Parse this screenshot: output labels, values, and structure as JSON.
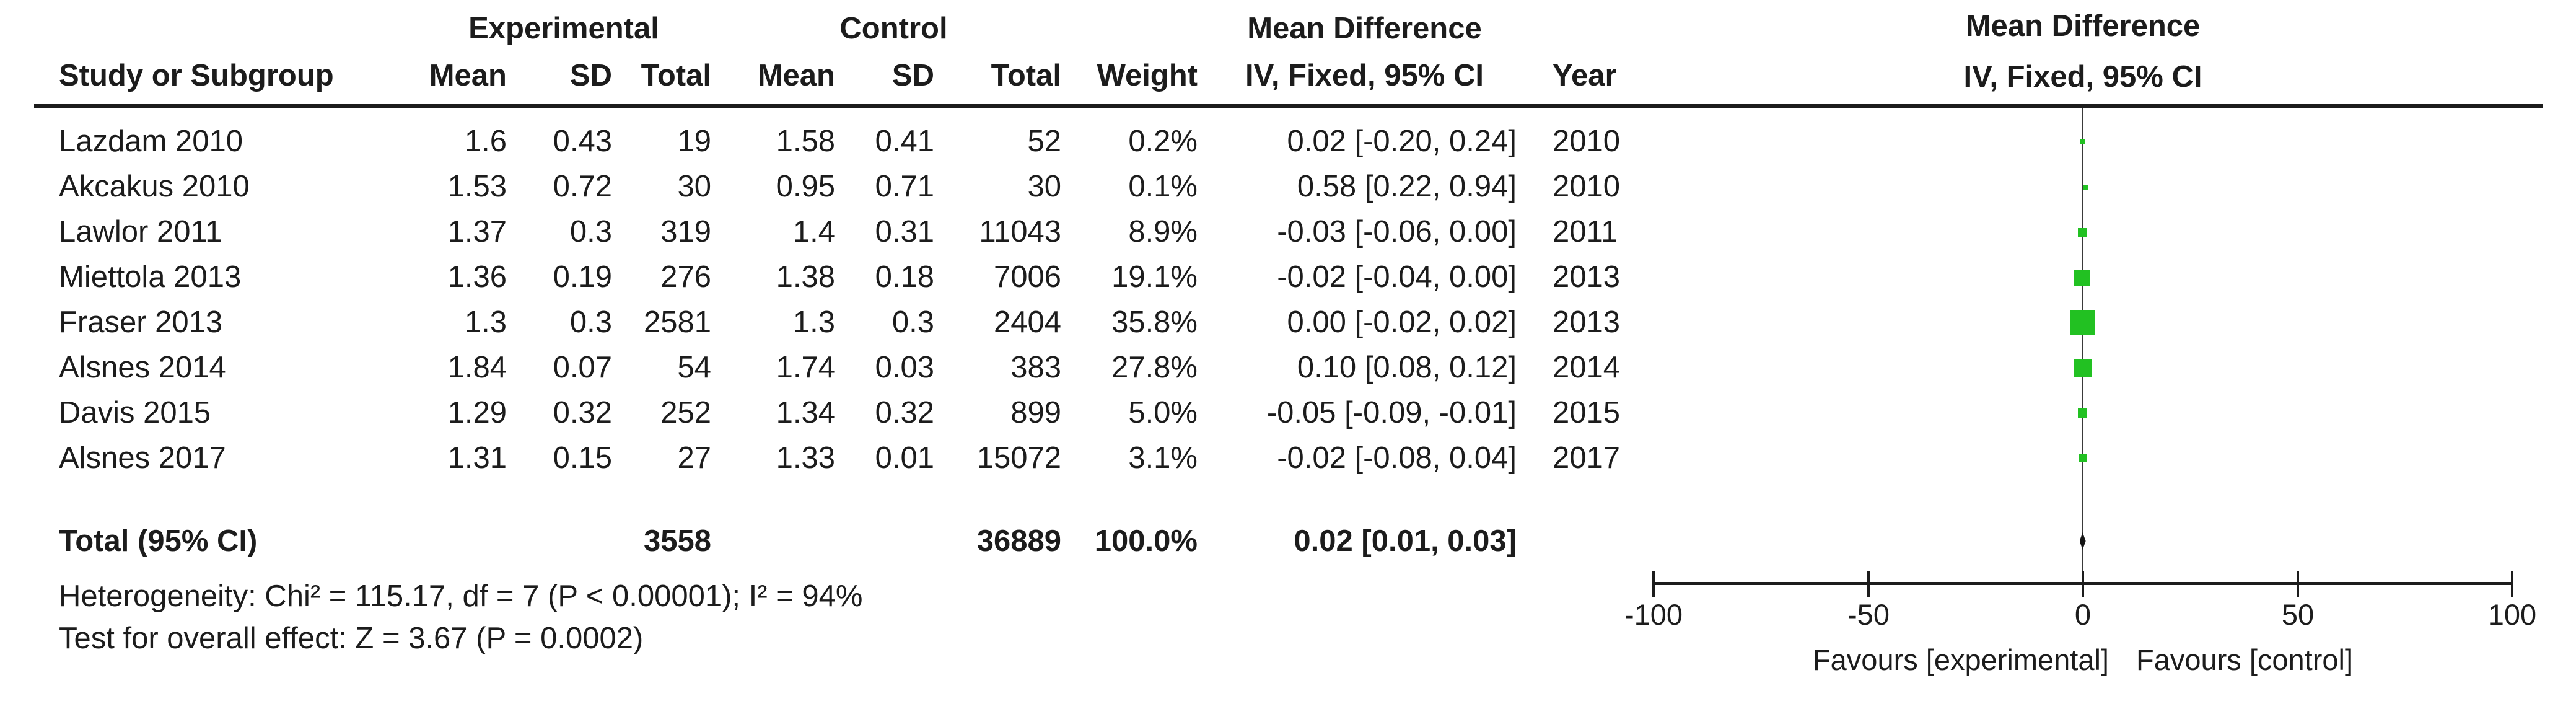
{
  "table": {
    "group_headers": {
      "experimental": "Experimental",
      "control": "Control",
      "mean_difference": "Mean Difference"
    },
    "columns": {
      "study": "Study or Subgroup",
      "exp_mean": "Mean",
      "exp_sd": "SD",
      "exp_total": "Total",
      "ctl_mean": "Mean",
      "ctl_sd": "SD",
      "ctl_total": "Total",
      "weight": "Weight",
      "ci": "IV, Fixed, 95% CI",
      "year": "Year"
    },
    "rows": [
      {
        "study": "Lazdam 2010",
        "exp_mean": "1.6",
        "exp_sd": "0.43",
        "exp_total": "19",
        "ctl_mean": "1.58",
        "ctl_sd": "0.41",
        "ctl_total": "52",
        "weight": "0.2%",
        "ci": "0.02 [-0.20, 0.24]",
        "year": "2010"
      },
      {
        "study": "Akcakus 2010",
        "exp_mean": "1.53",
        "exp_sd": "0.72",
        "exp_total": "30",
        "ctl_mean": "0.95",
        "ctl_sd": "0.71",
        "ctl_total": "30",
        "weight": "0.1%",
        "ci": "0.58 [0.22, 0.94]",
        "year": "2010"
      },
      {
        "study": "Lawlor 2011",
        "exp_mean": "1.37",
        "exp_sd": "0.3",
        "exp_total": "319",
        "ctl_mean": "1.4",
        "ctl_sd": "0.31",
        "ctl_total": "11043",
        "weight": "8.9%",
        "ci": "-0.03 [-0.06, 0.00]",
        "year": "2011"
      },
      {
        "study": "Miettola 2013",
        "exp_mean": "1.36",
        "exp_sd": "0.19",
        "exp_total": "276",
        "ctl_mean": "1.38",
        "ctl_sd": "0.18",
        "ctl_total": "7006",
        "weight": "19.1%",
        "ci": "-0.02 [-0.04, 0.00]",
        "year": "2013"
      },
      {
        "study": "Fraser 2013",
        "exp_mean": "1.3",
        "exp_sd": "0.3",
        "exp_total": "2581",
        "ctl_mean": "1.3",
        "ctl_sd": "0.3",
        "ctl_total": "2404",
        "weight": "35.8%",
        "ci": "0.00 [-0.02, 0.02]",
        "year": "2013"
      },
      {
        "study": "Alsnes 2014",
        "exp_mean": "1.84",
        "exp_sd": "0.07",
        "exp_total": "54",
        "ctl_mean": "1.74",
        "ctl_sd": "0.03",
        "ctl_total": "383",
        "weight": "27.8%",
        "ci": "0.10 [0.08, 0.12]",
        "year": "2014"
      },
      {
        "study": "Davis 2015",
        "exp_mean": "1.29",
        "exp_sd": "0.32",
        "exp_total": "252",
        "ctl_mean": "1.34",
        "ctl_sd": "0.32",
        "ctl_total": "899",
        "weight": "5.0%",
        "ci": "-0.05 [-0.09, -0.01]",
        "year": "2015"
      },
      {
        "study": "Alsnes 2017",
        "exp_mean": "1.31",
        "exp_sd": "0.15",
        "exp_total": "27",
        "ctl_mean": "1.33",
        "ctl_sd": "0.01",
        "ctl_total": "15072",
        "weight": "3.1%",
        "ci": "-0.02 [-0.08, 0.04]",
        "year": "2017"
      }
    ],
    "total": {
      "label": "Total (95% CI)",
      "exp_total": "3558",
      "ctl_total": "36889",
      "weight": "100.0%",
      "ci": "0.02 [0.01, 0.03]"
    },
    "heterogeneity": "Heterogeneity: Chi² = 115.17, df = 7 (P < 0.00001); I² = 94%",
    "overall_effect": "Test for overall effect: Z = 3.67 (P = 0.0002)"
  },
  "plot": {
    "title_line1": "Mean Difference",
    "title_line2": "IV, Fixed, 95% CI",
    "ticks": [
      "-100",
      "-50",
      "0",
      "50",
      "100"
    ],
    "favours_left": "Favours [experimental]",
    "favours_right": "Favours [control]",
    "marker_color": "#22C122",
    "diamond_color": "#141414"
  },
  "chart_data": {
    "type": "forest",
    "effect_measure": "Mean Difference, IV, Fixed, 95% CI",
    "axis": {
      "min": -100,
      "max": 100,
      "ticks": [
        -100,
        -50,
        0,
        50,
        100
      ]
    },
    "xlabel_left": "Favours [experimental]",
    "xlabel_right": "Favours [control]",
    "studies": [
      {
        "study": "Lazdam 2010",
        "year": 2010,
        "exp_mean": 1.6,
        "exp_sd": 0.43,
        "exp_total": 19,
        "ctl_mean": 1.58,
        "ctl_sd": 0.41,
        "ctl_total": 52,
        "weight_pct": 0.2,
        "md": 0.02,
        "ci_low": -0.2,
        "ci_high": 0.24,
        "marker_px": 9
      },
      {
        "study": "Akcakus 2010",
        "year": 2010,
        "exp_mean": 1.53,
        "exp_sd": 0.72,
        "exp_total": 30,
        "ctl_mean": 0.95,
        "ctl_sd": 0.71,
        "ctl_total": 30,
        "weight_pct": 0.1,
        "md": 0.58,
        "ci_low": 0.22,
        "ci_high": 0.94,
        "marker_px": 8
      },
      {
        "study": "Lawlor 2011",
        "year": 2011,
        "exp_mean": 1.37,
        "exp_sd": 0.3,
        "exp_total": 319,
        "ctl_mean": 1.4,
        "ctl_sd": 0.31,
        "ctl_total": 11043,
        "weight_pct": 8.9,
        "md": -0.03,
        "ci_low": -0.06,
        "ci_high": 0.0,
        "marker_px": 14
      },
      {
        "study": "Miettola 2013",
        "year": 2013,
        "exp_mean": 1.36,
        "exp_sd": 0.19,
        "exp_total": 276,
        "ctl_mean": 1.38,
        "ctl_sd": 0.18,
        "ctl_total": 7006,
        "weight_pct": 19.1,
        "md": -0.02,
        "ci_low": -0.04,
        "ci_high": 0.0,
        "marker_px": 26
      },
      {
        "study": "Fraser 2013",
        "year": 2013,
        "exp_mean": 1.3,
        "exp_sd": 0.3,
        "exp_total": 2581,
        "ctl_mean": 1.3,
        "ctl_sd": 0.3,
        "ctl_total": 2404,
        "weight_pct": 35.8,
        "md": 0.0,
        "ci_low": -0.02,
        "ci_high": 0.02,
        "marker_px": 40
      },
      {
        "study": "Alsnes 2014",
        "year": 2014,
        "exp_mean": 1.84,
        "exp_sd": 0.07,
        "exp_total": 54,
        "ctl_mean": 1.74,
        "ctl_sd": 0.03,
        "ctl_total": 383,
        "weight_pct": 27.8,
        "md": 0.1,
        "ci_low": 0.08,
        "ci_high": 0.12,
        "marker_px": 30
      },
      {
        "study": "Davis 2015",
        "year": 2015,
        "exp_mean": 1.29,
        "exp_sd": 0.32,
        "exp_total": 252,
        "ctl_mean": 1.34,
        "ctl_sd": 0.32,
        "ctl_total": 899,
        "weight_pct": 5.0,
        "md": -0.05,
        "ci_low": -0.09,
        "ci_high": -0.01,
        "marker_px": 15
      },
      {
        "study": "Alsnes 2017",
        "year": 2017,
        "exp_mean": 1.31,
        "exp_sd": 0.15,
        "exp_total": 27,
        "ctl_mean": 1.33,
        "ctl_sd": 0.01,
        "ctl_total": 15072,
        "weight_pct": 3.1,
        "md": -0.02,
        "ci_low": -0.08,
        "ci_high": 0.04,
        "marker_px": 13
      }
    ],
    "total": {
      "exp_total": 3558,
      "ctl_total": 36889,
      "weight_pct": 100.0,
      "md": 0.02,
      "ci_low": 0.01,
      "ci_high": 0.03
    },
    "heterogeneity": {
      "chi2": 115.17,
      "df": 7,
      "p": "< 0.00001",
      "i2_pct": 94
    },
    "overall_effect": {
      "z": 3.67,
      "p": "= 0.0002"
    }
  }
}
